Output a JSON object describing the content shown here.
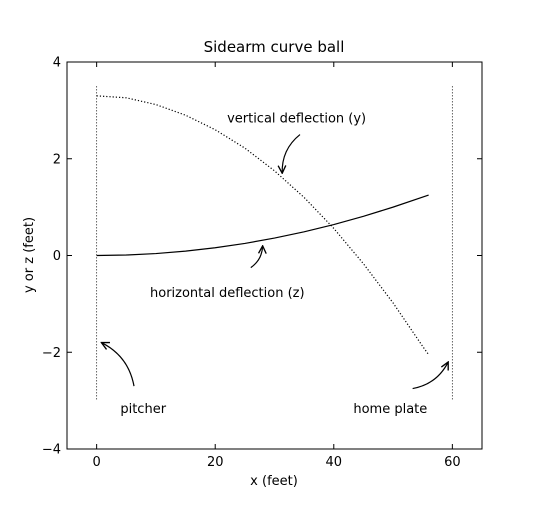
{
  "chart_data": {
    "type": "line",
    "title": "Sidearm curve ball",
    "xlabel": "x (feet)",
    "ylabel": "y or z (feet)",
    "xlim": [
      -5,
      65
    ],
    "ylim": [
      -4,
      4
    ],
    "xticks": [
      0,
      20,
      40,
      60
    ],
    "yticks": [
      -4,
      -2,
      0,
      2,
      4
    ],
    "grid": false,
    "series": [
      {
        "name": "vertical deflection (y)",
        "style": "dotted",
        "x": [
          0,
          5,
          10,
          15,
          20,
          25,
          30,
          35,
          40,
          45,
          50,
          55,
          56
        ],
        "y": [
          3.3,
          3.26,
          3.12,
          2.9,
          2.6,
          2.22,
          1.75,
          1.2,
          0.56,
          -0.17,
          -0.98,
          -1.88,
          -2.05
        ]
      },
      {
        "name": "horizontal deflection (z)",
        "style": "solid",
        "x": [
          0,
          5,
          10,
          15,
          20,
          25,
          30,
          35,
          40,
          45,
          50,
          56
        ],
        "y": [
          0,
          0.01,
          0.04,
          0.09,
          0.16,
          0.25,
          0.36,
          0.49,
          0.64,
          0.81,
          1.0,
          1.25
        ]
      }
    ],
    "markers": [
      {
        "name": "pitcher",
        "x": 0,
        "y_range": [
          -3,
          3.5
        ],
        "style": "dotted"
      },
      {
        "name": "home plate",
        "x": 60,
        "y_range": [
          -3,
          3.5
        ],
        "style": "dotted"
      }
    ],
    "annotations": [
      {
        "text": "vertical deflection (y)",
        "text_xy": [
          22,
          2.85
        ],
        "arrow_from": [
          34.3,
          2.5
        ],
        "arrow_to": [
          31.3,
          1.7
        ]
      },
      {
        "text": "horizontal deflection (z)",
        "text_xy": [
          9,
          -0.75
        ],
        "arrow_from": [
          26,
          -0.25
        ],
        "arrow_to": [
          28,
          0.2
        ]
      },
      {
        "text": "pitcher",
        "text_xy": [
          4,
          -3.15
        ],
        "arrow_from": [
          6.3,
          -2.7
        ],
        "arrow_to": [
          0.8,
          -1.8
        ]
      },
      {
        "text": "home plate",
        "text_xy": [
          43.3,
          -3.15
        ],
        "arrow_from": [
          53.3,
          -2.75
        ],
        "arrow_to": [
          59.3,
          -2.2
        ]
      }
    ]
  }
}
